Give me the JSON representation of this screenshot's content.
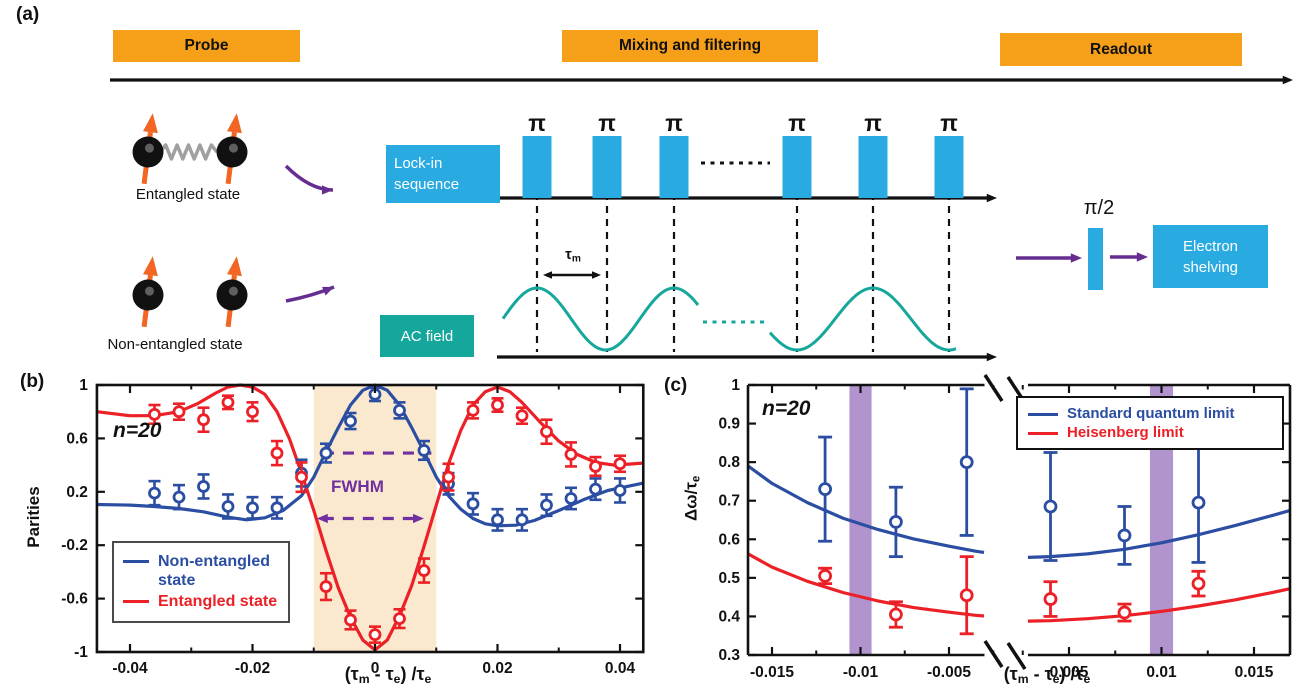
{
  "labels": {
    "a": "(a)",
    "b": "(b)",
    "c": "(c)"
  },
  "colors": {
    "stage_orange": "#F6A01A",
    "pulse_cyan": "#29ABE2",
    "teal": "#16A79C",
    "purple_arrow": "#662D91",
    "annotation_purple": "#7030A0",
    "series_blue": "#2B4EA2",
    "series_red": "#EB2127",
    "shade_peach": "#FBE9CF",
    "band_purple": "#B193CD",
    "spin_orange": "#F26522"
  },
  "panel_a": {
    "label": "(a)",
    "stages": [
      {
        "label": "Probe"
      },
      {
        "label": "Mixing and filtering"
      },
      {
        "label": "Readout"
      }
    ],
    "entangled_caption": "Entangled state",
    "non_entangled_caption": "Non-entangled state",
    "lockin_lines": [
      "Lock-in",
      "sequence"
    ],
    "ac_label": "AC field",
    "shelving_lines": [
      "Electron",
      "shelving"
    ],
    "pi_label": "π",
    "pi_half_label": "π/2",
    "tau_m_parts": [
      {
        "t": "τ",
        "s": "m"
      }
    ]
  },
  "chart_data": [
    {
      "type": "line",
      "panel": "(b)",
      "annotation": "n=20",
      "ylabel": "Parities",
      "xlabel_parts": [
        {
          "t": "(τ",
          "s": "m"
        },
        {
          "t": " - τ",
          "s": "e"
        },
        {
          "t": ") /τ",
          "s": "e"
        }
      ],
      "xlim": [
        -0.0454,
        0.0438
      ],
      "ylim": [
        -1,
        1
      ],
      "grid": false,
      "xticks": {
        "values": [
          -0.04,
          -0.02,
          0,
          0.02,
          0.04
        ],
        "labels": [
          "-0.04",
          "-0.02",
          "0",
          "0.02",
          "0.04"
        ]
      },
      "xminor": [
        -0.03,
        -0.01,
        0.01,
        0.03
      ],
      "yticks": {
        "values": [
          1,
          0.6,
          0.2,
          -0.2,
          -0.6,
          -1
        ],
        "labels": [
          "1",
          "0.6",
          "0.2",
          "-0.2",
          "-0.6",
          "-1"
        ]
      },
      "shaded_region": {
        "x0": -0.01,
        "x1": 0.01,
        "color": "#FBE9CF"
      },
      "fwhm": {
        "label": "FWHM",
        "color": "#7030A0",
        "half_max_line": {
          "y": 0.49,
          "x0": -0.0085,
          "x1": 0.0092
        },
        "width_arrow": {
          "y": 0.0,
          "x0": -0.0095,
          "x1": 0.008
        }
      },
      "legend": [
        {
          "label": "Non-entangled state"
        },
        {
          "label": "Entangled state"
        }
      ],
      "legend_position": "lower-left",
      "series": [
        {
          "name": "Non-entangled state",
          "color": "#2B4EA2",
          "x": [
            -0.036,
            -0.032,
            -0.028,
            -0.024,
            -0.02,
            -0.016,
            -0.012,
            -0.008,
            -0.004,
            0,
            0.004,
            0.008,
            0.012,
            0.016,
            0.02,
            0.024,
            0.028,
            0.032,
            0.036,
            0.04
          ],
          "y": [
            0.19,
            0.16,
            0.24,
            0.09,
            0.08,
            0.08,
            0.34,
            0.49,
            0.73,
            0.93,
            0.81,
            0.51,
            0.26,
            0.11,
            -0.01,
            -0.01,
            0.1,
            0.15,
            0.22,
            0.21
          ],
          "yerr": [
            0.09,
            0.09,
            0.09,
            0.09,
            0.08,
            0.08,
            0.1,
            0.07,
            0.06,
            0.05,
            0.06,
            0.07,
            0.08,
            0.08,
            0.08,
            0.08,
            0.08,
            0.08,
            0.08,
            0.09
          ]
        },
        {
          "name": "Entangled state",
          "color": "#EB2127",
          "x": [
            -0.036,
            -0.032,
            -0.028,
            -0.024,
            -0.02,
            -0.016,
            -0.012,
            -0.008,
            -0.004,
            0,
            0.004,
            0.008,
            0.012,
            0.016,
            0.02,
            0.024,
            0.028,
            0.032,
            0.036,
            0.04
          ],
          "y": [
            0.78,
            0.8,
            0.74,
            0.87,
            0.8,
            0.49,
            0.31,
            -0.51,
            -0.76,
            -0.87,
            -0.75,
            -0.39,
            0.31,
            0.81,
            0.85,
            0.77,
            0.65,
            0.48,
            0.39,
            0.41
          ],
          "yerr": [
            0.07,
            0.06,
            0.09,
            0.05,
            0.07,
            0.09,
            0.11,
            0.1,
            0.07,
            0.06,
            0.07,
            0.09,
            0.1,
            0.06,
            0.05,
            0.06,
            0.09,
            0.09,
            0.07,
            0.06
          ]
        }
      ],
      "curves": [
        {
          "name": "Non-entangled state model",
          "color": "#2B4EA2",
          "x": [
            -0.0454,
            -0.04,
            -0.036,
            -0.032,
            -0.028,
            -0.024,
            -0.021,
            -0.018,
            -0.015,
            -0.012,
            -0.01,
            -0.008,
            -0.006,
            -0.004,
            -0.002,
            0,
            0.002,
            0.004,
            0.006,
            0.008,
            0.01,
            0.012,
            0.014,
            0.016,
            0.018,
            0.02,
            0.023,
            0.026,
            0.03,
            0.034,
            0.038,
            0.0438
          ],
          "y": [
            0.105,
            0.1,
            0.09,
            0.075,
            0.05,
            0.01,
            -0.01,
            0.005,
            0.06,
            0.17,
            0.31,
            0.5,
            0.68,
            0.85,
            0.96,
            1.0,
            0.96,
            0.85,
            0.68,
            0.5,
            0.31,
            0.17,
            0.07,
            0.0,
            -0.04,
            -0.055,
            -0.05,
            -0.015,
            0.06,
            0.14,
            0.21,
            0.265
          ]
        },
        {
          "name": "Entangled state model",
          "color": "#EB2127",
          "x": [
            -0.0454,
            -0.04,
            -0.036,
            -0.032,
            -0.029,
            -0.026,
            -0.024,
            -0.022,
            -0.02,
            -0.018,
            -0.016,
            -0.014,
            -0.012,
            -0.01,
            -0.008,
            -0.006,
            -0.004,
            -0.002,
            0,
            0.002,
            0.004,
            0.006,
            0.008,
            0.01,
            0.012,
            0.014,
            0.016,
            0.018,
            0.02,
            0.022,
            0.024,
            0.027,
            0.03,
            0.033,
            0.036,
            0.039,
            0.0438
          ],
          "y": [
            0.8,
            0.77,
            0.77,
            0.8,
            0.86,
            0.94,
            0.985,
            1.0,
            0.985,
            0.93,
            0.8,
            0.6,
            0.34,
            0.06,
            -0.24,
            -0.52,
            -0.74,
            -0.91,
            -0.985,
            -0.91,
            -0.73,
            -0.5,
            -0.21,
            0.1,
            0.41,
            0.66,
            0.85,
            0.95,
            0.985,
            0.95,
            0.87,
            0.72,
            0.58,
            0.48,
            0.42,
            0.4,
            0.415
          ]
        }
      ]
    },
    {
      "type": "line",
      "panel": "(c)",
      "annotation": "n=20",
      "ylabel_parts": [
        {
          "t": "Δω/τ",
          "s": "e"
        }
      ],
      "xlabel_parts": [
        {
          "t": "(τ",
          "s": "m"
        },
        {
          "t": " - τ",
          "s": "e"
        },
        {
          "t": ") /τ",
          "s": "e"
        }
      ],
      "ylim": [
        0.3,
        1
      ],
      "x_axis_break": true,
      "yticks": {
        "values": [
          1,
          0.9,
          0.8,
          0.7,
          0.6,
          0.5,
          0.4,
          0.3
        ],
        "labels": [
          "1",
          "0.9",
          "0.8",
          "0.7",
          "0.6",
          "0.5",
          "0.4",
          "0.3"
        ]
      },
      "x_segments": [
        {
          "range": [
            -0.01635,
            -0.00302
          ],
          "ticks": [
            -0.015,
            -0.01,
            -0.005
          ],
          "labels": [
            "-0.015",
            "-0.01",
            "-0.005"
          ],
          "minor": [
            -0.0125,
            -0.0075,
            -0.0025
          ]
        },
        {
          "range": [
            0.00278,
            0.01695
          ],
          "ticks": [
            0.005,
            0.01,
            0.015
          ],
          "labels": [
            "0.005",
            "0.01",
            "0.015"
          ],
          "minor": [
            0.0025,
            0.0075,
            0.0125
          ]
        }
      ],
      "highlight_bands": {
        "color": "#B193CD",
        "centers": [
          -0.01,
          0.01
        ],
        "width": 0.00125
      },
      "legend": [
        {
          "label": "Standard quantum limit"
        },
        {
          "label": "Heisenberg limit"
        }
      ],
      "legend_position": "upper-right",
      "series": [
        {
          "name": "Standard quantum limit",
          "color": "#2B4EA2",
          "x": [
            -0.012,
            -0.008,
            -0.004,
            0.004,
            0.008,
            0.012
          ],
          "y": [
            0.73,
            0.645,
            0.8,
            0.685,
            0.61,
            0.695
          ],
          "yerr": [
            0.135,
            0.09,
            0.19,
            0.14,
            0.075,
            0.155
          ]
        },
        {
          "name": "Heisenberg limit",
          "color": "#EB2127",
          "x": [
            -0.012,
            -0.008,
            -0.004,
            0.004,
            0.008,
            0.012
          ],
          "y": [
            0.505,
            0.405,
            0.455,
            0.445,
            0.41,
            0.485
          ],
          "yerr": [
            0.02,
            0.033,
            0.1,
            0.045,
            0.022,
            0.032
          ]
        }
      ],
      "curves": [
        {
          "name": "Standard quantum limit model",
          "color": "#2B4EA2",
          "segments": [
            {
              "x": [
                -0.01635,
                -0.015,
                -0.013,
                -0.011,
                -0.009,
                -0.007,
                -0.005,
                -0.0035,
                -0.00302
              ],
              "y": [
                0.79,
                0.745,
                0.695,
                0.655,
                0.625,
                0.601,
                0.582,
                0.569,
                0.566
              ]
            },
            {
              "x": [
                0.00278,
                0.004,
                0.006,
                0.008,
                0.01,
                0.012,
                0.014,
                0.016,
                0.01695
              ],
              "y": [
                0.553,
                0.555,
                0.562,
                0.574,
                0.591,
                0.612,
                0.636,
                0.662,
                0.675
              ]
            }
          ]
        },
        {
          "name": "Heisenberg limit model",
          "color": "#EB2127",
          "segments": [
            {
              "x": [
                -0.01635,
                -0.015,
                -0.013,
                -0.011,
                -0.009,
                -0.007,
                -0.005,
                -0.0035,
                -0.00302
              ],
              "y": [
                0.562,
                0.528,
                0.491,
                0.462,
                0.44,
                0.423,
                0.411,
                0.403,
                0.401
              ]
            },
            {
              "x": [
                0.00278,
                0.004,
                0.006,
                0.008,
                0.01,
                0.012,
                0.014,
                0.016,
                0.01695
              ],
              "y": [
                0.388,
                0.389,
                0.394,
                0.402,
                0.413,
                0.427,
                0.443,
                0.462,
                0.472
              ]
            }
          ]
        }
      ]
    }
  ]
}
